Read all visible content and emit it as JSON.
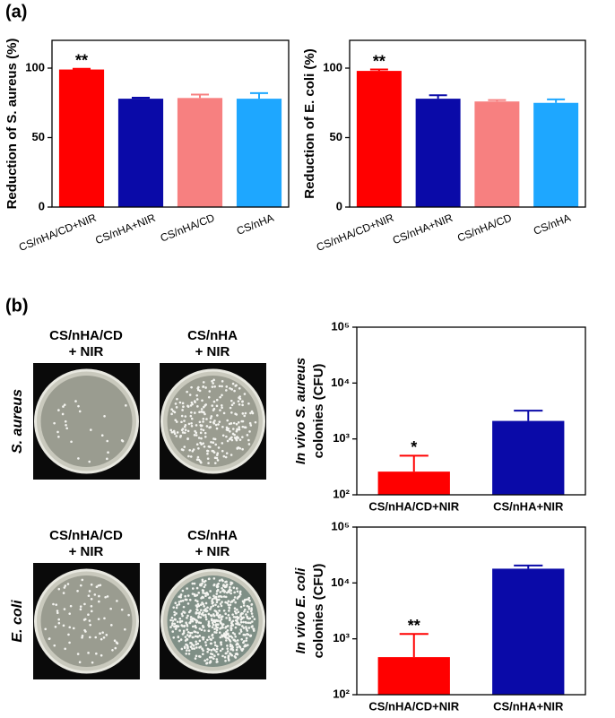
{
  "panel_labels": [
    "(a)",
    "(b)"
  ],
  "plates": [
    {
      "row_label": "S. aureus",
      "columns": [
        [
          "CS/nHA/CD",
          "+ NIR"
        ],
        [
          "CS/nHA",
          "+ NIR"
        ]
      ]
    },
    {
      "row_label": "E. coli",
      "columns": [
        [
          "CS/nHA/CD",
          "+ NIR"
        ],
        [
          "CS/nHA",
          "+ NIR"
        ]
      ]
    }
  ],
  "chart_data": [
    {
      "type": "bar",
      "ylabel": [
        "Reduction of S. aureus (%)"
      ],
      "categories": [
        "CS/nHA/CD+NIR",
        "CS/nHA+NIR",
        "CS/nHA/CD",
        "CS/nHA"
      ],
      "values": [
        99,
        78,
        78.5,
        78
      ],
      "errors": [
        0.5,
        0.7,
        2.5,
        4
      ],
      "colors": [
        "#ff0000",
        "#0a0aa8",
        "#f78080",
        "#1ea7ff"
      ],
      "annotations": [
        "**",
        null,
        null,
        null
      ],
      "ylim": [
        0,
        120
      ],
      "yticks": [
        0,
        50,
        100
      ]
    },
    {
      "type": "bar",
      "ylabel": [
        "Reduction of E. coli (%)"
      ],
      "categories": [
        "CS/nHA/CD+NIR",
        "CS/nHA+NIR",
        "CS/nHA/CD",
        "CS/nHA"
      ],
      "values": [
        98,
        78,
        76,
        75
      ],
      "errors": [
        1,
        2.5,
        1,
        2.5
      ],
      "colors": [
        "#ff0000",
        "#0a0aa8",
        "#f78080",
        "#1ea7ff"
      ],
      "annotations": [
        "**",
        null,
        null,
        null
      ],
      "ylim": [
        0,
        120
      ],
      "yticks": [
        0,
        50,
        100
      ]
    },
    {
      "type": "bar",
      "log_scale": true,
      "ylabel": [
        "In vivo S. aureus",
        "colonies (CFU)"
      ],
      "categories": [
        "CS/nHA/CD+NIR",
        "CS/nHA+NIR"
      ],
      "values": [
        260,
        2100
      ],
      "errors": [
        240,
        1100
      ],
      "colors": [
        "#ff0000",
        "#0a0aa8"
      ],
      "annotations": [
        "*",
        null
      ],
      "ylim": [
        100,
        100000
      ],
      "yticks": [
        {
          "value": 100,
          "label": "10²"
        },
        {
          "value": 1000,
          "label": "10³"
        },
        {
          "value": 10000,
          "label": "10⁴"
        },
        {
          "value": 100000,
          "label": "10⁵"
        }
      ]
    },
    {
      "type": "bar",
      "log_scale": true,
      "ylabel": [
        "In vivo E. coli",
        "colonies (CFU)"
      ],
      "categories": [
        "CS/nHA/CD+NIR",
        "CS/nHA+NIR"
      ],
      "values": [
        470,
        18000
      ],
      "errors": [
        750,
        2500
      ],
      "colors": [
        "#ff0000",
        "#0a0aa8"
      ],
      "annotations": [
        "**",
        null
      ],
      "ylim": [
        100,
        100000
      ],
      "yticks": [
        {
          "value": 100,
          "label": "10²"
        },
        {
          "value": 1000,
          "label": "10³"
        },
        {
          "value": 10000,
          "label": "10⁴"
        },
        {
          "value": 100000,
          "label": "10⁵"
        }
      ]
    }
  ]
}
